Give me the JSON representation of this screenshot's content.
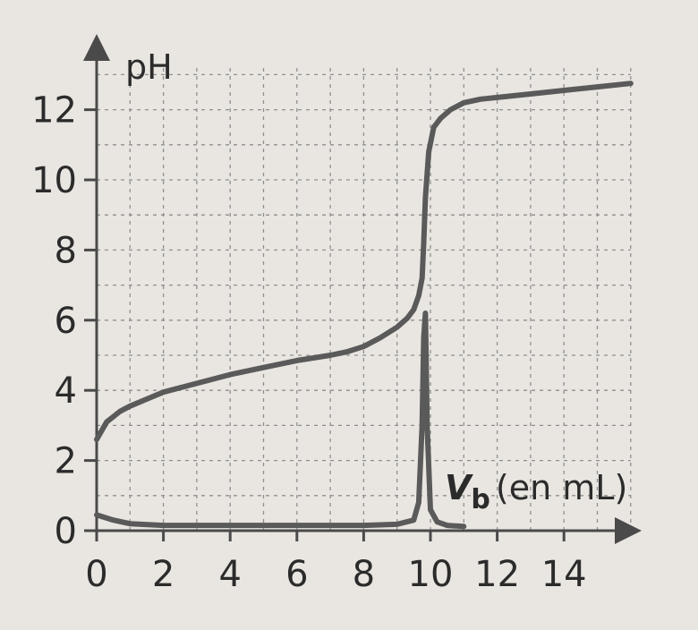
{
  "chart_data": {
    "type": "line",
    "title": "",
    "ylabel": "pH",
    "xlabel_main": "V",
    "xlabel_sub": "b",
    "xlabel_unit": "(en mL)",
    "xlim": [
      0,
      16
    ],
    "ylim": [
      0,
      13
    ],
    "x_ticks": [
      0,
      2,
      4,
      6,
      8,
      10,
      12,
      14
    ],
    "y_ticks": [
      0,
      2,
      4,
      6,
      8,
      10,
      12
    ],
    "grid": true,
    "legend": "none",
    "series": [
      {
        "x": [
          0,
          0.3,
          0.7,
          1,
          1.5,
          2,
          3,
          4,
          5,
          6,
          7,
          7.5,
          8,
          8.5,
          9,
          9.3,
          9.5,
          9.65,
          9.75,
          9.8,
          9.85,
          9.95,
          10.1,
          10.3,
          10.6,
          11,
          11.5,
          12,
          13,
          14,
          15,
          16
        ],
        "y": [
          2.6,
          3.1,
          3.4,
          3.55,
          3.75,
          3.95,
          4.2,
          4.45,
          4.65,
          4.85,
          5.0,
          5.1,
          5.25,
          5.5,
          5.8,
          6.05,
          6.3,
          6.7,
          7.2,
          8.2,
          9.5,
          10.8,
          11.5,
          11.75,
          12.0,
          12.2,
          12.3,
          12.35,
          12.45,
          12.55,
          12.65,
          12.75
        ]
      },
      {
        "x": [
          0,
          0.5,
          1,
          2,
          4,
          6,
          8,
          9,
          9.5,
          9.65,
          9.75,
          9.8,
          9.85,
          9.9,
          10.0,
          10.2,
          10.5,
          11
        ],
        "y": [
          0.45,
          0.3,
          0.2,
          0.15,
          0.15,
          0.15,
          0.15,
          0.18,
          0.3,
          0.8,
          3.0,
          5.5,
          6.2,
          3.0,
          0.6,
          0.25,
          0.15,
          0.12
        ]
      }
    ]
  }
}
